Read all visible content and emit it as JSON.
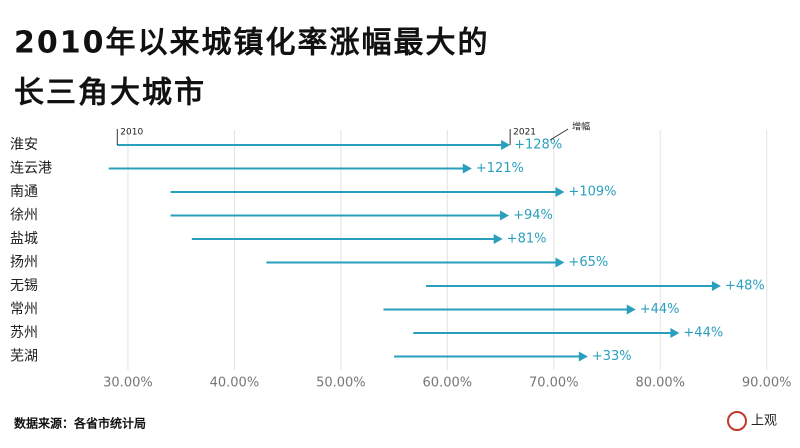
{
  "chart_data": {
    "type": "arrow",
    "title": [
      "2010年以来城镇化率涨幅最大的",
      "长三角大城市"
    ],
    "categories": [
      "淮安",
      "连云港",
      "南通",
      "徐州",
      "盐城",
      "扬州",
      "无锡",
      "常州",
      "苏州",
      "芜湖"
    ],
    "series": [
      {
        "name": "2010",
        "values": [
          29.0,
          28.2,
          34.0,
          34.0,
          36.0,
          43.0,
          58.0,
          54.0,
          56.8,
          55.0
        ]
      },
      {
        "name": "2021",
        "values": [
          65.9,
          62.3,
          71.0,
          65.8,
          65.2,
          71.0,
          85.7,
          77.7,
          81.8,
          73.2
        ]
      }
    ],
    "growth": {
      "name": "增幅",
      "values": [
        128,
        121,
        109,
        94,
        81,
        65,
        48,
        44,
        44,
        33
      ],
      "value_labels": [
        "+128%",
        "+121%",
        "+109%",
        "+94%",
        "+81%",
        "+65%",
        "+48%",
        "+44%",
        "+44%",
        "+33%"
      ]
    },
    "color": "#2a9fbd",
    "xlim": [
      27,
      92
    ],
    "xticks": [
      {
        "value": 30,
        "label": "30.00%"
      },
      {
        "value": 40,
        "label": "40.00%"
      },
      {
        "value": 50,
        "label": "50.00%"
      },
      {
        "value": 60,
        "label": "60.00%"
      },
      {
        "value": 70,
        "label": "70.00%"
      },
      {
        "value": 80,
        "label": "80.00%"
      },
      {
        "value": 90,
        "label": "90.00%"
      }
    ],
    "grid": true,
    "source": "数据来源：各省市统计局",
    "logo": "上观"
  }
}
